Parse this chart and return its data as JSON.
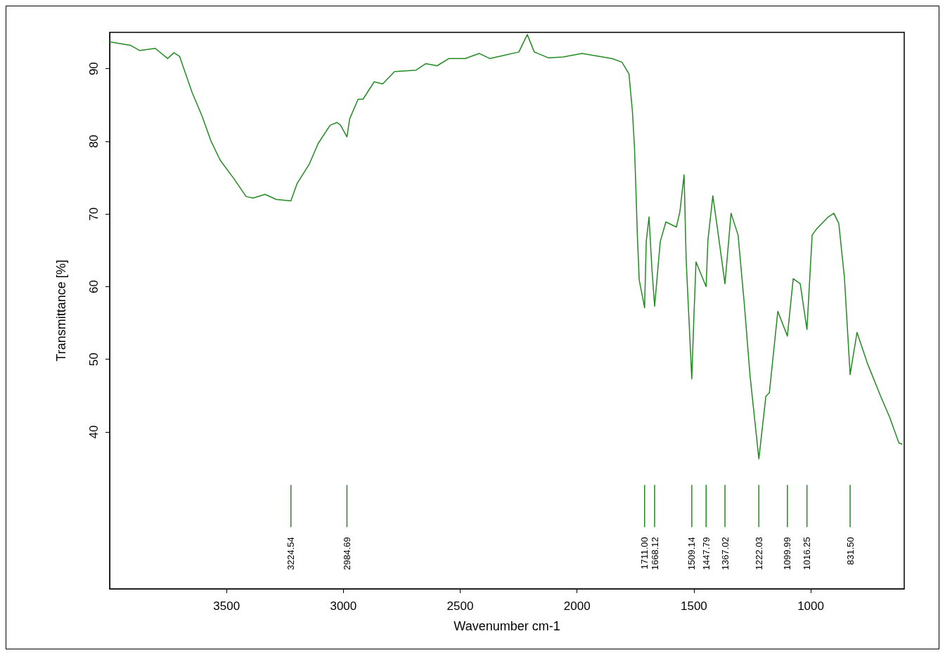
{
  "chart_data": {
    "type": "line",
    "xlabel": "Wavenumber cm-1",
    "ylabel": "Transmittance [%]",
    "xlim": [
      4000,
      600
    ],
    "ylim": [
      18.4,
      95
    ],
    "xticks": [
      3500,
      3000,
      2500,
      2000,
      1500,
      1000
    ],
    "yticks": [
      40,
      50,
      60,
      70,
      80,
      90
    ],
    "grid": false,
    "marker": "none",
    "line_style": "solid",
    "series": [
      {
        "color": "#228b22",
        "x": [
          4000,
          3910,
          3871,
          3805,
          3752,
          3725,
          3701,
          3647,
          3605,
          3566,
          3527,
          3467,
          3416,
          3386,
          3335,
          3287,
          3224.54,
          3198,
          3147,
          3108,
          3057,
          3027,
          3012,
          2984.69,
          2973,
          2937,
          2916,
          2868,
          2832,
          2781,
          2689,
          2647,
          2599,
          2548,
          2479,
          2419,
          2374,
          2317,
          2249,
          2213,
          2183,
          2123,
          2060,
          1979,
          1850,
          1808,
          1778,
          1763,
          1754,
          1748,
          1742,
          1734,
          1711,
          1704,
          1692,
          1680,
          1668.12,
          1644,
          1620,
          1575,
          1560,
          1542,
          1533,
          1509.14,
          1500,
          1491,
          1447.79,
          1440,
          1419,
          1401,
          1367.02,
          1341,
          1311,
          1284,
          1260,
          1222.03,
          1192,
          1177,
          1141,
          1099.99,
          1075,
          1045,
          1016.25,
          994,
          976,
          925,
          901,
          880,
          856,
          831.5,
          802,
          757,
          698,
          662,
          623,
          608
        ],
        "values": [
          93.7,
          93.2,
          92.5,
          92.8,
          91.4,
          92.2,
          91.7,
          86.7,
          83.5,
          80.0,
          77.4,
          74.8,
          72.4,
          72.2,
          72.7,
          72.0,
          71.8,
          74.2,
          76.8,
          79.7,
          82.2,
          82.6,
          82.2,
          80.6,
          83.1,
          85.8,
          85.8,
          88.2,
          87.9,
          89.6,
          89.8,
          90.7,
          90.4,
          91.4,
          91.4,
          92.1,
          91.4,
          91.8,
          92.3,
          94.7,
          92.3,
          91.5,
          91.6,
          92.1,
          91.4,
          90.9,
          89.3,
          84.1,
          79.0,
          73.2,
          67.1,
          60.9,
          57.1,
          66.2,
          69.6,
          62.6,
          57.3,
          66.2,
          68.9,
          68.2,
          70.3,
          75.4,
          63.6,
          47.3,
          55.8,
          63.4,
          60.0,
          66.4,
          72.5,
          68.4,
          60.4,
          70.1,
          67.1,
          57.5,
          47.8,
          36.3,
          44.9,
          45.4,
          56.6,
          53.2,
          61.1,
          60.4,
          54.1,
          67.1,
          67.9,
          69.6,
          70.1,
          68.7,
          61.3,
          47.9,
          53.7,
          49.4,
          44.7,
          42.0,
          38.5,
          38.3
        ]
      },
      {
        "type": "bar",
        "color": "#228b22",
        "x": [
          3224.54,
          2984.69,
          1711,
          1668.12,
          1509.14,
          1447.79,
          1367.02,
          1222.03,
          1099.99,
          1016.25,
          831.5
        ],
        "base": [
          26.9,
          26.9,
          26.9,
          26.9,
          26.9,
          26.9,
          26.9,
          26.9,
          26.9,
          26.9,
          26.9
        ],
        "values": [
          5.8,
          5.8,
          5.8,
          5.8,
          5.8,
          5.8,
          5.8,
          5.8,
          5.8,
          5.8,
          5.8
        ]
      }
    ],
    "annotations": [
      {
        "text": "3224.54",
        "x": 3224.54,
        "y": 26.9
      },
      {
        "text": "2984.69",
        "x": 2984.69,
        "y": 26.9
      },
      {
        "text": "1711.00",
        "x": 1711,
        "y": 26.9
      },
      {
        "text": "1668.12",
        "x": 1668.12,
        "y": 26.9
      },
      {
        "text": "1509.14",
        "x": 1509.14,
        "y": 26.9
      },
      {
        "text": "1447.79",
        "x": 1447.79,
        "y": 26.9
      },
      {
        "text": "1367.02",
        "x": 1367.02,
        "y": 26.9
      },
      {
        "text": "1222.03",
        "x": 1222.03,
        "y": 26.9
      },
      {
        "text": "1099.99",
        "x": 1099.99,
        "y": 26.9
      },
      {
        "text": "1016.25",
        "x": 1016.25,
        "y": 26.9
      },
      {
        "text": "831.50",
        "x": 831.5,
        "y": 26.9
      }
    ]
  }
}
